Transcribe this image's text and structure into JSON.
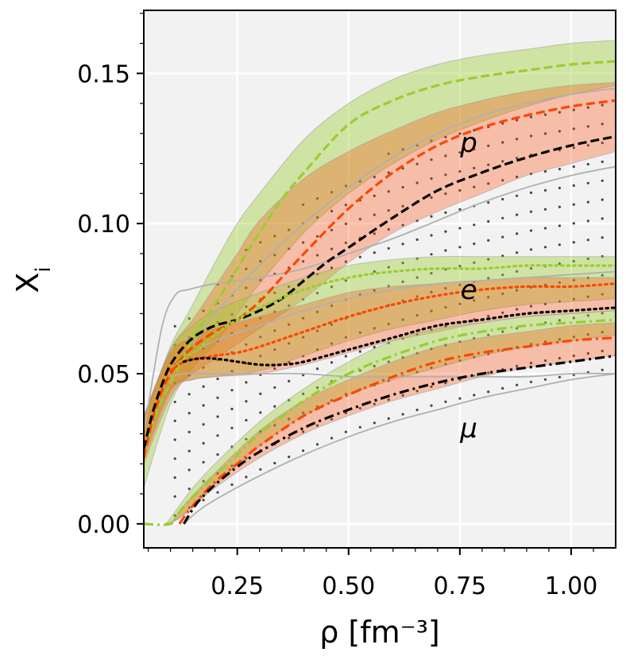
{
  "chart_data": {
    "type": "line",
    "xlabel": "ρ [fm⁻³]",
    "ylabel": "X_i",
    "xlim": [
      0.04,
      1.1
    ],
    "ylim": [
      -0.008,
      0.171
    ],
    "xticks": [
      0.25,
      0.5,
      0.75,
      1.0
    ],
    "xtick_labels": [
      "0.25",
      "0.50",
      "0.75",
      "1.00"
    ],
    "yticks": [
      0.0,
      0.05,
      0.1,
      0.15
    ],
    "ytick_labels": [
      "0.00",
      "0.05",
      "0.10",
      "0.15"
    ],
    "grid": true,
    "background": "#f2f2f2",
    "colors": {
      "green": "#9acd32",
      "red": "#ff4500",
      "black": "#000000",
      "grey": "#b0b0b0"
    },
    "species_labels": [
      {
        "text": "p",
        "x": 0.77,
        "y": 0.127
      },
      {
        "text": "e",
        "x": 0.77,
        "y": 0.078
      },
      {
        "text": "μ",
        "x": 0.77,
        "y": 0.032
      }
    ],
    "bands": [
      {
        "species": "p",
        "color": "green",
        "x": [
          0.04,
          0.1,
          0.15,
          0.2,
          0.25,
          0.3,
          0.4,
          0.5,
          0.6,
          0.7,
          0.8,
          0.9,
          1.0,
          1.1
        ],
        "lower": [
          0.012,
          0.04,
          0.052,
          0.06,
          0.07,
          0.08,
          0.097,
          0.11,
          0.12,
          0.128,
          0.134,
          0.139,
          0.143,
          0.146
        ],
        "upper": [
          0.035,
          0.059,
          0.073,
          0.087,
          0.1,
          0.11,
          0.128,
          0.14,
          0.148,
          0.153,
          0.156,
          0.158,
          0.16,
          0.161
        ]
      },
      {
        "species": "p",
        "color": "red",
        "x": [
          0.04,
          0.1,
          0.15,
          0.2,
          0.25,
          0.3,
          0.4,
          0.5,
          0.6,
          0.7,
          0.8,
          0.9,
          1.0,
          1.1
        ],
        "lower": [
          0.02,
          0.042,
          0.05,
          0.055,
          0.06,
          0.065,
          0.075,
          0.087,
          0.097,
          0.104,
          0.11,
          0.116,
          0.12,
          0.124
        ],
        "upper": [
          0.036,
          0.058,
          0.068,
          0.079,
          0.09,
          0.101,
          0.115,
          0.124,
          0.131,
          0.137,
          0.141,
          0.144,
          0.146,
          0.147
        ]
      },
      {
        "species": "e",
        "color": "green",
        "x": [
          0.04,
          0.1,
          0.15,
          0.2,
          0.3,
          0.4,
          0.5,
          0.6,
          0.7,
          0.8,
          0.9,
          1.0,
          1.1
        ],
        "lower": [
          0.025,
          0.045,
          0.048,
          0.049,
          0.051,
          0.056,
          0.061,
          0.065,
          0.068,
          0.071,
          0.073,
          0.074,
          0.075
        ],
        "upper": [
          0.035,
          0.058,
          0.066,
          0.071,
          0.077,
          0.082,
          0.086,
          0.088,
          0.089,
          0.089,
          0.089,
          0.089,
          0.089
        ]
      },
      {
        "species": "e",
        "color": "red",
        "x": [
          0.04,
          0.1,
          0.15,
          0.2,
          0.3,
          0.4,
          0.5,
          0.6,
          0.7,
          0.8,
          0.9,
          1.0,
          1.1
        ],
        "lower": [
          0.022,
          0.044,
          0.048,
          0.049,
          0.05,
          0.053,
          0.057,
          0.061,
          0.064,
          0.067,
          0.069,
          0.07,
          0.071
        ],
        "upper": [
          0.036,
          0.057,
          0.062,
          0.065,
          0.069,
          0.073,
          0.077,
          0.079,
          0.08,
          0.081,
          0.082,
          0.082,
          0.082
        ]
      },
      {
        "species": "mu",
        "color": "green",
        "x": [
          0.09,
          0.12,
          0.15,
          0.2,
          0.3,
          0.4,
          0.5,
          0.6,
          0.7,
          0.8,
          0.9,
          1.0,
          1.1
        ],
        "lower": [
          0.0,
          0.002,
          0.006,
          0.013,
          0.026,
          0.036,
          0.043,
          0.048,
          0.052,
          0.056,
          0.059,
          0.061,
          0.063
        ],
        "upper": [
          0.0,
          0.006,
          0.012,
          0.02,
          0.034,
          0.045,
          0.054,
          0.061,
          0.065,
          0.067,
          0.069,
          0.07,
          0.071
        ]
      },
      {
        "species": "mu",
        "color": "red",
        "x": [
          0.1,
          0.13,
          0.16,
          0.2,
          0.3,
          0.4,
          0.5,
          0.6,
          0.7,
          0.8,
          0.9,
          1.0,
          1.1
        ],
        "lower": [
          0.0,
          0.003,
          0.007,
          0.012,
          0.022,
          0.03,
          0.036,
          0.041,
          0.045,
          0.049,
          0.052,
          0.054,
          0.056
        ],
        "upper": [
          0.0,
          0.006,
          0.011,
          0.017,
          0.031,
          0.041,
          0.048,
          0.054,
          0.059,
          0.062,
          0.064,
          0.066,
          0.067
        ]
      }
    ],
    "series": [
      {
        "species": "p",
        "color": "green",
        "dash": "dashed",
        "x": [
          0.04,
          0.06,
          0.08,
          0.1,
          0.13,
          0.16,
          0.2,
          0.25,
          0.3,
          0.35,
          0.4,
          0.5,
          0.6,
          0.7,
          0.8,
          0.9,
          1.0,
          1.1
        ],
        "y": [
          0.023,
          0.033,
          0.041,
          0.047,
          0.056,
          0.064,
          0.073,
          0.085,
          0.097,
          0.108,
          0.117,
          0.133,
          0.141,
          0.146,
          0.149,
          0.151,
          0.153,
          0.154
        ]
      },
      {
        "species": "p",
        "color": "red",
        "dash": "dashed",
        "x": [
          0.04,
          0.06,
          0.08,
          0.1,
          0.13,
          0.16,
          0.2,
          0.25,
          0.3,
          0.35,
          0.4,
          0.5,
          0.6,
          0.7,
          0.8,
          0.9,
          1.0,
          1.1
        ],
        "y": [
          0.022,
          0.035,
          0.044,
          0.05,
          0.056,
          0.06,
          0.064,
          0.068,
          0.074,
          0.082,
          0.09,
          0.105,
          0.117,
          0.126,
          0.132,
          0.136,
          0.139,
          0.141
        ]
      },
      {
        "species": "p",
        "color": "black",
        "dash": "dashed",
        "x": [
          0.04,
          0.06,
          0.08,
          0.1,
          0.13,
          0.16,
          0.2,
          0.25,
          0.3,
          0.35,
          0.4,
          0.45,
          0.5,
          0.6,
          0.7,
          0.8,
          0.9,
          1.0,
          1.1
        ],
        "y": [
          0.025,
          0.037,
          0.046,
          0.053,
          0.059,
          0.063,
          0.066,
          0.068,
          0.071,
          0.075,
          0.081,
          0.087,
          0.092,
          0.102,
          0.111,
          0.117,
          0.122,
          0.126,
          0.129
        ]
      },
      {
        "species": "e",
        "color": "green",
        "dash": "dotted",
        "x": [
          0.1,
          0.13,
          0.16,
          0.2,
          0.25,
          0.3,
          0.4,
          0.5,
          0.6,
          0.7,
          0.8,
          0.9,
          1.0,
          1.1
        ],
        "y": [
          0.051,
          0.055,
          0.058,
          0.063,
          0.068,
          0.072,
          0.078,
          0.082,
          0.084,
          0.085,
          0.085,
          0.086,
          0.086,
          0.086
        ]
      },
      {
        "species": "e",
        "color": "red",
        "dash": "dotted",
        "x": [
          0.1,
          0.13,
          0.16,
          0.2,
          0.25,
          0.3,
          0.4,
          0.5,
          0.6,
          0.7,
          0.8,
          0.9,
          1.0,
          1.1
        ],
        "y": [
          0.051,
          0.054,
          0.055,
          0.056,
          0.057,
          0.059,
          0.064,
          0.069,
          0.073,
          0.076,
          0.078,
          0.079,
          0.079,
          0.08
        ]
      },
      {
        "species": "e",
        "color": "black",
        "dash": "dotted",
        "x": [
          0.13,
          0.16,
          0.2,
          0.25,
          0.3,
          0.35,
          0.4,
          0.5,
          0.6,
          0.7,
          0.8,
          0.9,
          1.0,
          1.1
        ],
        "y": [
          0.054,
          0.055,
          0.055,
          0.054,
          0.053,
          0.053,
          0.054,
          0.058,
          0.062,
          0.066,
          0.068,
          0.07,
          0.071,
          0.072
        ]
      },
      {
        "species": "mu",
        "color": "green",
        "dash": "dashdot",
        "x": [
          0.04,
          0.1,
          0.12,
          0.15,
          0.2,
          0.25,
          0.3,
          0.4,
          0.5,
          0.6,
          0.7,
          0.8,
          0.9,
          1.0,
          1.1
        ],
        "y": [
          0.0,
          0.0,
          0.004,
          0.009,
          0.016,
          0.023,
          0.03,
          0.041,
          0.05,
          0.056,
          0.061,
          0.064,
          0.066,
          0.067,
          0.068
        ]
      },
      {
        "species": "mu",
        "color": "red",
        "dash": "dashdot",
        "x": [
          0.12,
          0.15,
          0.2,
          0.25,
          0.3,
          0.4,
          0.5,
          0.6,
          0.7,
          0.8,
          0.9,
          1.0,
          1.1
        ],
        "y": [
          0.0,
          0.006,
          0.014,
          0.02,
          0.026,
          0.036,
          0.043,
          0.049,
          0.054,
          0.057,
          0.059,
          0.061,
          0.062
        ]
      },
      {
        "species": "mu",
        "color": "black",
        "dash": "dashdot",
        "x": [
          0.13,
          0.16,
          0.2,
          0.25,
          0.3,
          0.4,
          0.5,
          0.6,
          0.7,
          0.8,
          0.9,
          1.0,
          1.1
        ],
        "y": [
          0.0,
          0.007,
          0.013,
          0.019,
          0.024,
          0.032,
          0.038,
          0.043,
          0.047,
          0.05,
          0.052,
          0.054,
          0.056
        ]
      }
    ],
    "thin_lines": [
      {
        "x": [
          0.04,
          0.08,
          0.11,
          0.14,
          0.2,
          0.3,
          0.4,
          0.5,
          0.6,
          0.7,
          0.8,
          0.9,
          1.0,
          1.1
        ],
        "y": [
          0.03,
          0.065,
          0.076,
          0.078,
          0.08,
          0.082,
          0.085,
          0.09,
          0.095,
          0.101,
          0.107,
          0.112,
          0.116,
          0.119
        ]
      },
      {
        "x": [
          0.1,
          0.13,
          0.2,
          0.3,
          0.4,
          0.5,
          0.6,
          0.7,
          0.8,
          0.9,
          1.0,
          1.1
        ],
        "y": [
          0.049,
          0.05,
          0.05,
          0.05,
          0.05,
          0.049,
          0.049,
          0.049,
          0.049,
          0.049,
          0.05,
          0.05
        ]
      },
      {
        "x": [
          0.13,
          0.16,
          0.2,
          0.3,
          0.4,
          0.5,
          0.6,
          0.7,
          0.8,
          0.9,
          1.0,
          1.1
        ],
        "y": [
          0.0,
          0.004,
          0.008,
          0.016,
          0.023,
          0.029,
          0.034,
          0.038,
          0.042,
          0.045,
          0.048,
          0.05
        ]
      },
      {
        "x": [
          0.15,
          0.2,
          0.3,
          0.4,
          0.5,
          0.6,
          0.7,
          0.8,
          0.9,
          1.0,
          1.1
        ],
        "y": [
          0.06,
          0.07,
          0.086,
          0.1,
          0.112,
          0.122,
          0.13,
          0.136,
          0.14,
          0.143,
          0.145
        ]
      },
      {
        "x": [
          0.15,
          0.2,
          0.3,
          0.4,
          0.5,
          0.6,
          0.7,
          0.8,
          0.9,
          1.0,
          1.1
        ],
        "y": [
          0.057,
          0.061,
          0.066,
          0.071,
          0.075,
          0.078,
          0.08,
          0.081,
          0.082,
          0.083,
          0.084
        ]
      }
    ],
    "dotted_region": {
      "x": [
        0.1,
        0.3,
        0.5,
        0.7,
        0.9,
        1.1
      ],
      "lower": [
        0.0,
        0.016,
        0.029,
        0.038,
        0.045,
        0.05
      ],
      "upper": [
        0.065,
        0.097,
        0.118,
        0.13,
        0.138,
        0.145
      ]
    }
  }
}
